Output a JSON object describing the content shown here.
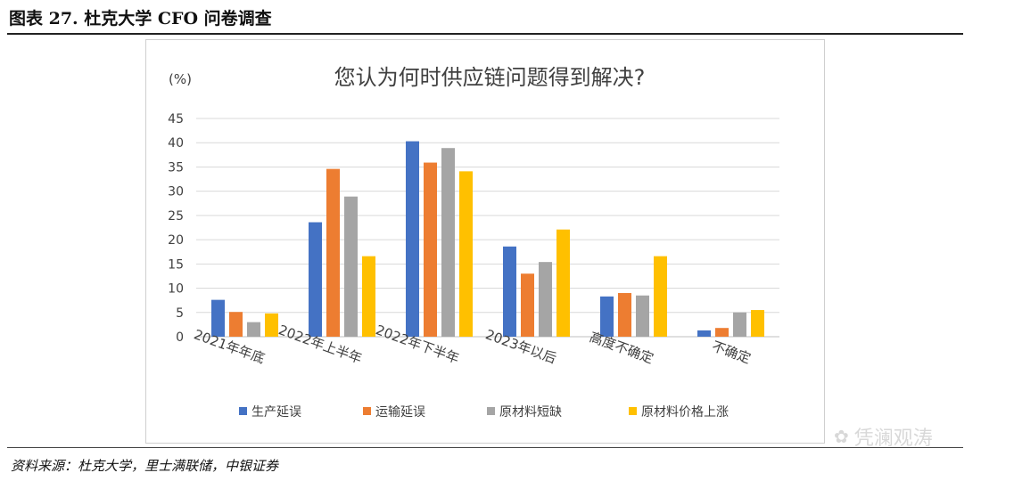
{
  "figure": {
    "label": "图表 27. 杜克大学 CFO 问卷调查",
    "source": "资料来源：杜克大学，里士满联储，中银证券",
    "watermark": "凭澜观涛"
  },
  "chart_data": {
    "type": "bar",
    "title": "您认为何时供应链问题得到解决?",
    "ylabel": "(%)",
    "xlabel": "",
    "ylim": [
      0,
      45
    ],
    "yticks": [
      0,
      5,
      10,
      15,
      20,
      25,
      30,
      35,
      40,
      45
    ],
    "grid": true,
    "legend_position": "bottom",
    "categories": [
      "2021年年底",
      "2022年上半年",
      "2022年下半年",
      "2023年以后",
      "高度不确定",
      "不确定"
    ],
    "series": [
      {
        "name": "生产延误",
        "color": "#4472C4",
        "values": [
          7.6,
          23.6,
          40.3,
          18.6,
          8.3,
          1.3
        ]
      },
      {
        "name": "运输延误",
        "color": "#ED7D31",
        "values": [
          5.1,
          34.6,
          35.9,
          13.0,
          9.0,
          1.8
        ]
      },
      {
        "name": "原材料短缺",
        "color": "#A5A5A5",
        "values": [
          3.0,
          28.9,
          38.9,
          15.4,
          8.5,
          5.0
        ]
      },
      {
        "name": "原材料价格上涨",
        "color": "#FFC000",
        "values": [
          4.8,
          16.6,
          34.1,
          22.1,
          16.6,
          5.5
        ]
      }
    ]
  }
}
